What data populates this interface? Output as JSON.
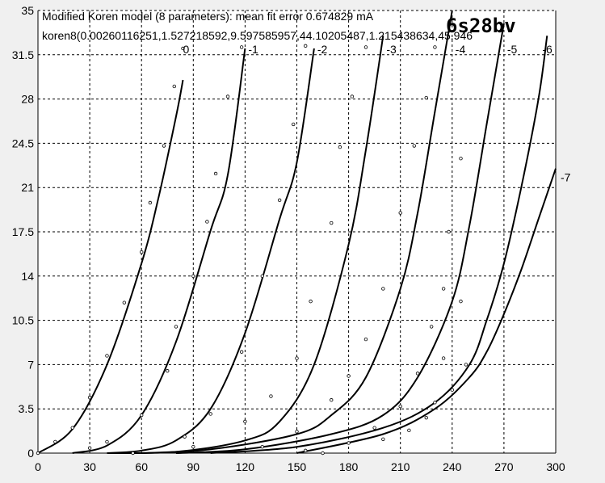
{
  "chart_data": {
    "type": "line",
    "title": "Modified Koren model (8 parameters): mean fit error 0.674829 mA",
    "subtitle": "koren8(0.00260116251,1.527218592,9.597585957,44.10205487,1.215438634,45.946",
    "badge": "6s28bv",
    "xlabel": "",
    "ylabel": "",
    "xlim": [
      0,
      300
    ],
    "ylim": [
      0,
      35
    ],
    "x_ticks": [
      "0",
      "30",
      "60",
      "90",
      "120",
      "150",
      "180",
      "210",
      "240",
      "270",
      "300"
    ],
    "y_ticks": [
      "0",
      "3.5",
      "7",
      "10.5",
      "14",
      "17.5",
      "21",
      "24.5",
      "28",
      "31.5",
      "35"
    ],
    "grid": true,
    "legend": "none",
    "colors": {
      "curve": "#000000",
      "grid": "#000000",
      "plot_bg": "#ffffff",
      "frame": "#f0f0f0"
    },
    "series": [
      {
        "name": "0",
        "label": "0",
        "x": [
          0,
          20,
          40,
          60,
          70,
          80,
          84
        ],
        "y": [
          0,
          1.9,
          7.0,
          15.0,
          20.3,
          26.6,
          29.5
        ]
      },
      {
        "name": "-1",
        "label": "-1",
        "x": [
          20,
          40,
          60,
          80,
          100,
          110,
          120
        ],
        "y": [
          0,
          0.6,
          3.0,
          8.8,
          17.6,
          22.0,
          32.0
        ]
      },
      {
        "name": "-2",
        "label": "-2",
        "x": [
          40,
          60,
          80,
          100,
          120,
          140,
          150,
          160
        ],
        "y": [
          0,
          0.2,
          1.0,
          3.5,
          9.5,
          18.5,
          23.0,
          32.0
        ]
      },
      {
        "name": "-3",
        "label": "-3",
        "x": [
          40,
          80,
          120,
          140,
          160,
          180,
          190,
          200
        ],
        "y": [
          0,
          0.1,
          1.0,
          2.5,
          7.0,
          16.5,
          24.0,
          33.0
        ]
      },
      {
        "name": "-4",
        "label": "-4",
        "x": [
          60,
          100,
          150,
          170,
          190,
          210,
          220,
          230,
          240
        ],
        "y": [
          0,
          0.3,
          1.5,
          3.0,
          6.0,
          13.0,
          19.0,
          27.0,
          35.0
        ]
      },
      {
        "name": "-5",
        "label": "-5",
        "x": [
          80,
          120,
          170,
          200,
          220,
          240,
          250,
          260,
          270
        ],
        "y": [
          0,
          0.3,
          1.5,
          3.0,
          6.0,
          12.0,
          18.0,
          26.0,
          34.0
        ]
      },
      {
        "name": "-6",
        "label": "-6",
        "x": [
          100,
          150,
          200,
          230,
          250,
          260,
          270,
          280,
          290,
          295
        ],
        "y": [
          0,
          0.5,
          2.0,
          4.0,
          7.0,
          10.5,
          15.0,
          21.0,
          28.0,
          33.0
        ]
      },
      {
        "name": "-7",
        "label": "-7",
        "x": [
          150,
          200,
          230,
          250,
          260,
          270,
          280,
          290,
          300
        ],
        "y": [
          0,
          1.5,
          3.5,
          6.0,
          8.0,
          11.0,
          14.5,
          18.5,
          22.5
        ]
      }
    ],
    "measured_points": [
      [
        0,
        0
      ],
      [
        10,
        0.9
      ],
      [
        20,
        2.0
      ],
      [
        30,
        4.4
      ],
      [
        40,
        7.7
      ],
      [
        50,
        11.9
      ],
      [
        60,
        15.9
      ],
      [
        65,
        19.8
      ],
      [
        73,
        24.3
      ],
      [
        79,
        29.0
      ],
      [
        84,
        32.0
      ],
      [
        30,
        0.4
      ],
      [
        40,
        0.9
      ],
      [
        60,
        3.0
      ],
      [
        75,
        6.5
      ],
      [
        80,
        10.0
      ],
      [
        90,
        14.0
      ],
      [
        98,
        18.3
      ],
      [
        103,
        22.1
      ],
      [
        110,
        28.2
      ],
      [
        118,
        32.1
      ],
      [
        55,
        0
      ],
      [
        85,
        1.3
      ],
      [
        100,
        3.1
      ],
      [
        118,
        8.0
      ],
      [
        130,
        14.0
      ],
      [
        140,
        20.0
      ],
      [
        148,
        26.0
      ],
      [
        155,
        32.2
      ],
      [
        90,
        0.5
      ],
      [
        120,
        2.5
      ],
      [
        135,
        4.5
      ],
      [
        150,
        7.5
      ],
      [
        158,
        12.0
      ],
      [
        170,
        18.2
      ],
      [
        175,
        24.2
      ],
      [
        182,
        28.2
      ],
      [
        190,
        32.1
      ],
      [
        130,
        0.5
      ],
      [
        150,
        1.7
      ],
      [
        170,
        4.2
      ],
      [
        180,
        6.1
      ],
      [
        190,
        9.0
      ],
      [
        200,
        13.0
      ],
      [
        210,
        19.0
      ],
      [
        218,
        24.3
      ],
      [
        225,
        28.1
      ],
      [
        230,
        32.1
      ],
      [
        155,
        0.2
      ],
      [
        180,
        0.8
      ],
      [
        195,
        2.0
      ],
      [
        210,
        3.7
      ],
      [
        220,
        6.3
      ],
      [
        228,
        10.0
      ],
      [
        235,
        13.0
      ],
      [
        238,
        17.5
      ],
      [
        245,
        23.3
      ],
      [
        165,
        0
      ],
      [
        200,
        1.1
      ],
      [
        215,
        1.8
      ],
      [
        225,
        2.8
      ],
      [
        230,
        4.0
      ],
      [
        235,
        7.5
      ],
      [
        240,
        5.0
      ],
      [
        245,
        12.0
      ],
      [
        248,
        7.0
      ]
    ]
  }
}
